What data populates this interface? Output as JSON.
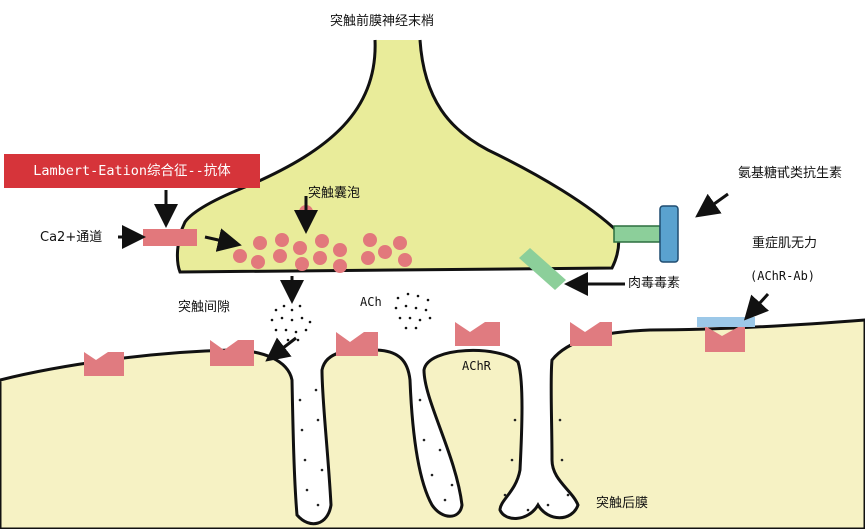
{
  "labels": {
    "presynaptic": "突触前膜神经末梢",
    "vesicle": "突触囊泡",
    "calcium_channel": "Ca2+通道",
    "cleft": "突触间隙",
    "ach": "ACh",
    "achr": "AChR",
    "postsynaptic": "突触后膜",
    "aminoglycoside": "氨基糖甙类抗生素",
    "botulinum": "肉毒毒素",
    "myasthenia": "重症肌无力",
    "achr_ab": "(AChR-Ab)",
    "lambert": "Lambert-Eation综合征--抗体"
  },
  "colors": {
    "terminal_fill": "#e9ec9a",
    "post_fill": "#f6f2c4",
    "vesicle": "#e2787c",
    "channel": "#e2787c",
    "receptor": "#e07b80",
    "banner": "#d6343a",
    "green_blocker": "#8ccf9a",
    "blue_blocker": "#5aa2cf",
    "antibody_bar": "#9cc8e8"
  }
}
